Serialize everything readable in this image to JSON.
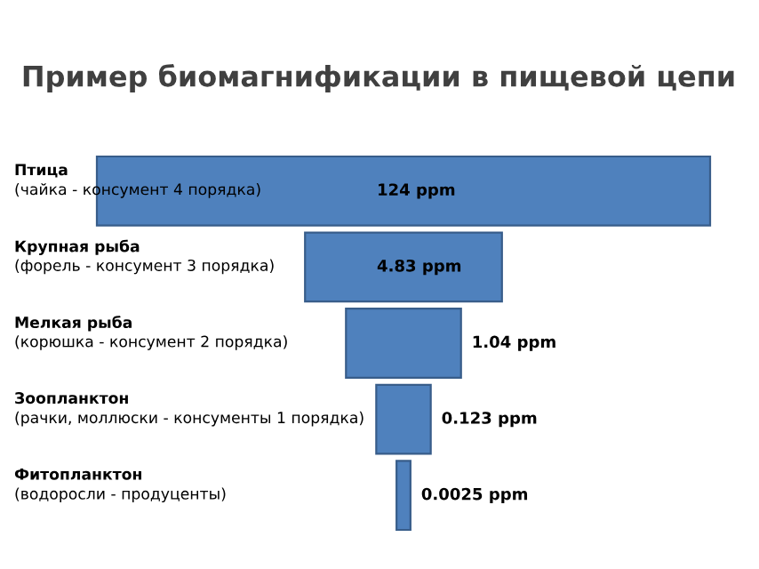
{
  "chart_data": {
    "type": "other",
    "title": "Пример биомагнификации в пищевой цепи",
    "categories": [
      "Птица\n(чайка - консумент 4 порядка)",
      "Крупная рыба\n(форель - консумент 3 порядка)",
      "Мелкая рыба\n(корюшка - консумент 2 порядка)",
      "Зоопланктон\n(рачки, моллюски - консументы 1 порядка)",
      "Фитопланктон\n(водоросли - продуценты)"
    ],
    "values": [
      124,
      4.83,
      1.04,
      0.123,
      0.0025
    ],
    "value_labels": [
      "124 ppm",
      "4.83 ppm",
      "1.04 ppm",
      "0.123 ppm",
      "0.0025 ppm"
    ],
    "color": "#4f81bd"
  }
}
